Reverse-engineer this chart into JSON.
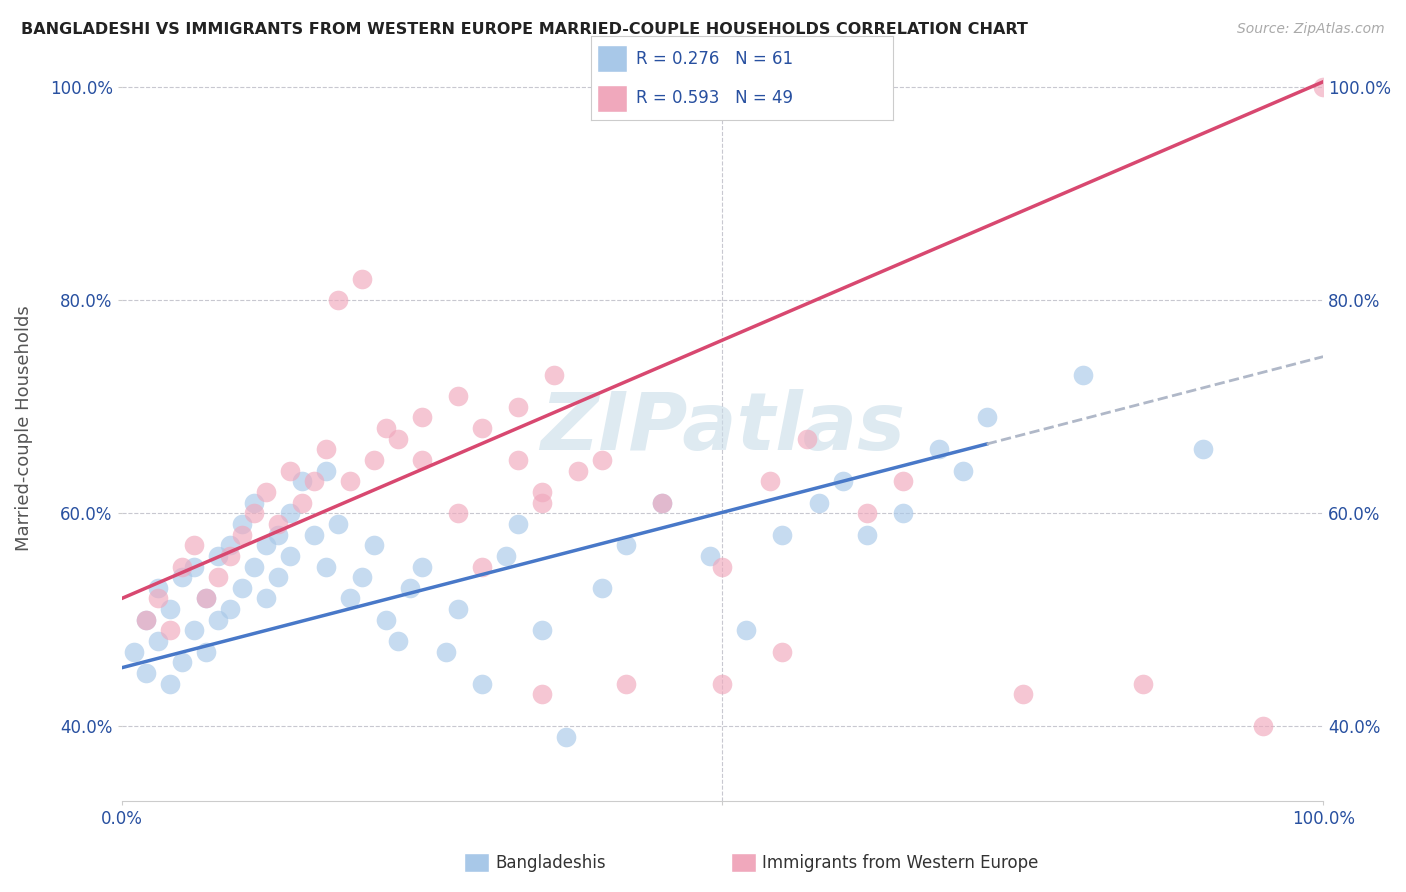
{
  "title": "BANGLADESHI VS IMMIGRANTS FROM WESTERN EUROPE MARRIED-COUPLE HOUSEHOLDS CORRELATION CHART",
  "source": "Source: ZipAtlas.com",
  "ylabel": "Married-couple Households",
  "blue_R": 0.276,
  "blue_N": 61,
  "pink_R": 0.593,
  "pink_N": 49,
  "blue_color": "#a8c8e8",
  "pink_color": "#f0a8bc",
  "blue_line_color": "#4878c8",
  "pink_line_color": "#d84870",
  "dashed_line_color": "#b0b8c8",
  "legend_text_color": "#2850a0",
  "watermark_color": "#c8dce8",
  "background_color": "#ffffff",
  "grid_color": "#c8c8d0",
  "xlim": [
    0.0,
    1.0
  ],
  "ylim": [
    0.33,
    1.03
  ],
  "yticks": [
    0.4,
    0.6,
    0.8,
    1.0
  ],
  "ytick_labels": [
    "40.0%",
    "60.0%",
    "80.0%",
    "100.0%"
  ],
  "xticks": [
    0.0,
    0.5,
    1.0
  ],
  "xtick_labels": [
    "0.0%",
    "",
    "100.0%"
  ],
  "blue_line_x0": 0.0,
  "blue_line_y0": 0.455,
  "blue_line_x1": 0.72,
  "blue_line_y1": 0.665,
  "dash_line_x0": 0.72,
  "dash_line_y0": 0.665,
  "dash_line_x1": 1.0,
  "dash_line_y1": 0.747,
  "pink_line_x0": 0.0,
  "pink_line_y0": 0.52,
  "pink_line_x1": 1.0,
  "pink_line_y1": 1.005,
  "blue_x": [
    0.01,
    0.02,
    0.02,
    0.03,
    0.03,
    0.04,
    0.04,
    0.05,
    0.05,
    0.06,
    0.06,
    0.07,
    0.07,
    0.08,
    0.08,
    0.09,
    0.09,
    0.1,
    0.1,
    0.11,
    0.11,
    0.12,
    0.12,
    0.13,
    0.13,
    0.14,
    0.14,
    0.15,
    0.16,
    0.17,
    0.17,
    0.18,
    0.19,
    0.2,
    0.21,
    0.22,
    0.23,
    0.24,
    0.25,
    0.27,
    0.28,
    0.3,
    0.32,
    0.33,
    0.35,
    0.37,
    0.4,
    0.42,
    0.45,
    0.49,
    0.52,
    0.55,
    0.58,
    0.6,
    0.62,
    0.65,
    0.68,
    0.7,
    0.72,
    0.8,
    0.9
  ],
  "blue_y": [
    0.47,
    0.5,
    0.45,
    0.48,
    0.53,
    0.44,
    0.51,
    0.46,
    0.54,
    0.49,
    0.55,
    0.47,
    0.52,
    0.5,
    0.56,
    0.51,
    0.57,
    0.53,
    0.59,
    0.55,
    0.61,
    0.57,
    0.52,
    0.58,
    0.54,
    0.6,
    0.56,
    0.63,
    0.58,
    0.64,
    0.55,
    0.59,
    0.52,
    0.54,
    0.57,
    0.5,
    0.48,
    0.53,
    0.55,
    0.47,
    0.51,
    0.44,
    0.56,
    0.59,
    0.49,
    0.39,
    0.53,
    0.57,
    0.61,
    0.56,
    0.49,
    0.58,
    0.61,
    0.63,
    0.58,
    0.6,
    0.66,
    0.64,
    0.69,
    0.73,
    0.66
  ],
  "pink_x": [
    0.02,
    0.03,
    0.04,
    0.05,
    0.06,
    0.07,
    0.08,
    0.09,
    0.1,
    0.11,
    0.12,
    0.13,
    0.14,
    0.15,
    0.16,
    0.17,
    0.19,
    0.21,
    0.23,
    0.25,
    0.28,
    0.3,
    0.33,
    0.36,
    0.25,
    0.3,
    0.35,
    0.38,
    0.28,
    0.33,
    0.35,
    0.4,
    0.45,
    0.5,
    0.54,
    0.57,
    0.62,
    0.65,
    0.2,
    0.18,
    0.22,
    0.35,
    0.42,
    0.5,
    0.55,
    0.75,
    0.85,
    0.95,
    1.0
  ],
  "pink_y": [
    0.5,
    0.52,
    0.49,
    0.55,
    0.57,
    0.52,
    0.54,
    0.56,
    0.58,
    0.6,
    0.62,
    0.59,
    0.64,
    0.61,
    0.63,
    0.66,
    0.63,
    0.65,
    0.67,
    0.69,
    0.71,
    0.68,
    0.7,
    0.73,
    0.65,
    0.55,
    0.61,
    0.64,
    0.6,
    0.65,
    0.62,
    0.65,
    0.61,
    0.55,
    0.63,
    0.67,
    0.6,
    0.63,
    0.82,
    0.8,
    0.68,
    0.43,
    0.44,
    0.44,
    0.47,
    0.43,
    0.44,
    0.4,
    1.0
  ]
}
